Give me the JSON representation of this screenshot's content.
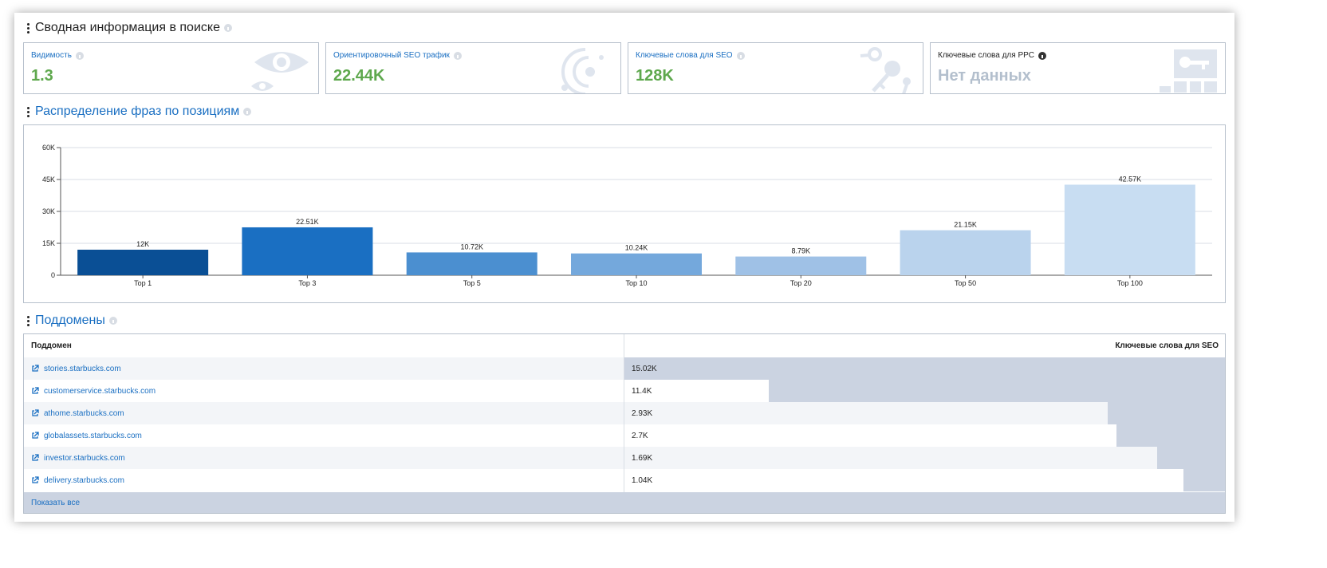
{
  "search_summary": {
    "title": "Сводная информация в поиске",
    "cards": [
      {
        "label": "Видимость",
        "value": "1.3"
      },
      {
        "label": "Ориентировочный SEO трафик",
        "value": "22.44K"
      },
      {
        "label": "Ключевые слова для SEO",
        "value": "128K"
      },
      {
        "label": "Ключевые слова для PPC",
        "value": "Нет данных"
      }
    ]
  },
  "positions": {
    "title": "Распределение фраз по позициям"
  },
  "chart_data": {
    "type": "bar",
    "categories": [
      "Top 1",
      "Top 3",
      "Top 5",
      "Top 10",
      "Top 20",
      "Top 50",
      "Top 100"
    ],
    "values": [
      12000,
      22510,
      10720,
      10240,
      8790,
      21150,
      42570
    ],
    "data_labels": [
      "12K",
      "22.51K",
      "10.72K",
      "10.24K",
      "8.79K",
      "21.15K",
      "42.57K"
    ],
    "yticks": [
      0,
      15000,
      30000,
      45000,
      60000
    ],
    "ytick_labels": [
      "0",
      "15K",
      "30K",
      "45K",
      "60K"
    ],
    "ylim": [
      0,
      60000
    ],
    "grid": true,
    "colors": [
      "#0a4f95",
      "#1a6fc2",
      "#4b8fd0",
      "#74a8dc",
      "#9fc1e6",
      "#bad3ed",
      "#c8ddf2"
    ]
  },
  "subdomains": {
    "title": "Поддомены",
    "col_subdomain": "Поддомен",
    "col_keywords": "Ключевые слова для SEO",
    "rows": [
      {
        "name": "stories.starbucks.com",
        "keywords": "15.02K",
        "share": 1.0
      },
      {
        "name": "customerservice.starbucks.com",
        "keywords": "11.4K",
        "share": 0.759
      },
      {
        "name": "athome.starbucks.com",
        "keywords": "2.93K",
        "share": 0.195
      },
      {
        "name": "globalassets.starbucks.com",
        "keywords": "2.7K",
        "share": 0.18
      },
      {
        "name": "investor.starbucks.com",
        "keywords": "1.69K",
        "share": 0.113
      },
      {
        "name": "delivery.starbucks.com",
        "keywords": "1.04K",
        "share": 0.069
      }
    ],
    "show_all": "Показать все"
  },
  "colors": {
    "accent": "#1a6fc2",
    "positive": "#5ea84d",
    "muted": "#b3bfcd",
    "bar_track": "#cbd3e1",
    "row_alt": "#f3f5f8"
  },
  "icons": {
    "card_0": "eye-icon",
    "card_1": "traffic-rings-icon",
    "card_2": "keys-icon",
    "card_3": "key-block-icon",
    "row_link": "external-link-icon",
    "drag": "drag-handle-icon"
  }
}
